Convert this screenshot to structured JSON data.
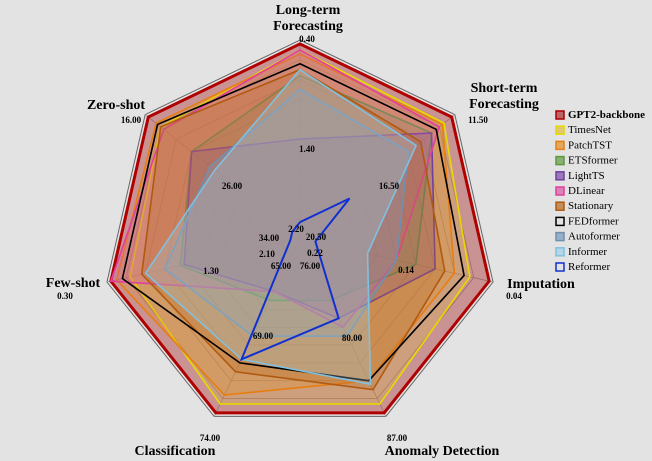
{
  "chart_data": {
    "type": "radar",
    "axes": [
      {
        "name": "Long-term Forecasting",
        "lines": [
          "Long-term",
          "Forecasting"
        ],
        "outer_label": "0.40",
        "inner_label": "1.40"
      },
      {
        "name": "Short-term Forecasting",
        "lines": [
          "Short-term",
          "Forecasting"
        ],
        "outer_label": "11.50",
        "inner_label": "16.50"
      },
      {
        "name": "Imputation",
        "lines": [
          "Imputation"
        ],
        "outer_label": "0.04",
        "inner_label": "0.14"
      },
      {
        "name": "Anomaly Detection",
        "lines": [
          "Anomaly Detection"
        ],
        "outer_label": "87.00",
        "inner_label": "80.00"
      },
      {
        "name": "Classification",
        "lines": [
          "Classification"
        ],
        "outer_label": "74.00",
        "inner_label": "69.00"
      },
      {
        "name": "Few-shot",
        "lines": [
          "Few-shot"
        ],
        "outer_label": "0.30",
        "inner_label": "1.30"
      },
      {
        "name": "Zero-shot",
        "lines": [
          "Zero-shot"
        ],
        "outer_label": "16.00",
        "inner_label": "26.00"
      }
    ],
    "center_labels": [
      "2.20",
      "20.50",
      "0.22",
      "76.00",
      "65.00",
      "2.10",
      "34.00"
    ],
    "series": [
      {
        "name": "GPT2-backbone",
        "color": "#b00000",
        "fill": "#a83030",
        "values": [
          0.98,
          0.98,
          0.98,
          0.98,
          0.98,
          0.98,
          0.98
        ]
      },
      {
        "name": "TimesNet",
        "color": "#e8d800",
        "fill": "#d8c040",
        "values": [
          0.95,
          0.93,
          0.88,
          0.93,
          0.93,
          0.88,
          0.9
        ]
      },
      {
        "name": "PatchTST",
        "color": "#e87d10",
        "fill": "#e0902a",
        "values": [
          0.93,
          0.92,
          0.8,
          0.8,
          0.88,
          0.95,
          0.93
        ]
      },
      {
        "name": "ETSformer",
        "color": "#5a9a3a",
        "fill": "#6a9a4a",
        "values": [
          0.82,
          0.85,
          0.6,
          0.35,
          0.35,
          0.62,
          0.7
        ]
      },
      {
        "name": "LightTS",
        "color": "#7040a0",
        "fill": "#7a4aa8",
        "values": [
          0.5,
          0.85,
          0.7,
          0.45,
          0.3,
          0.6,
          0.7
        ]
      },
      {
        "name": "DLinear",
        "color": "#e040a0",
        "fill": "#d85aa0",
        "values": [
          0.95,
          0.9,
          0.5,
          0.5,
          0.3,
          0.98,
          0.88
        ]
      },
      {
        "name": "Stationary",
        "color": "#b05a10",
        "fill": "#b86820",
        "values": [
          0.85,
          0.78,
          0.75,
          0.85,
          0.75,
          0.82,
          0.9
        ]
      },
      {
        "name": "FEDformer",
        "color": "#000000",
        "fill": "none",
        "values": [
          0.88,
          0.88,
          0.85,
          0.8,
          0.7,
          0.92,
          0.92
        ]
      },
      {
        "name": "Autoformer",
        "color": "#7090b0",
        "fill": "#7a9ab8",
        "values": [
          0.75,
          0.7,
          0.5,
          0.55,
          0.55,
          0.7,
          0.58
        ]
      },
      {
        "name": "Informer",
        "color": "#80c0e0",
        "fill": "#a0d0e8",
        "values": [
          0.85,
          0.75,
          0.35,
          0.82,
          0.68,
          0.8,
          0.55
        ]
      },
      {
        "name": "Reformer",
        "color": "#1030d0",
        "fill": "none",
        "values": [
          0.08,
          0.32,
          0.08,
          0.45,
          0.68,
          0.05,
          0.05
        ]
      }
    ]
  }
}
